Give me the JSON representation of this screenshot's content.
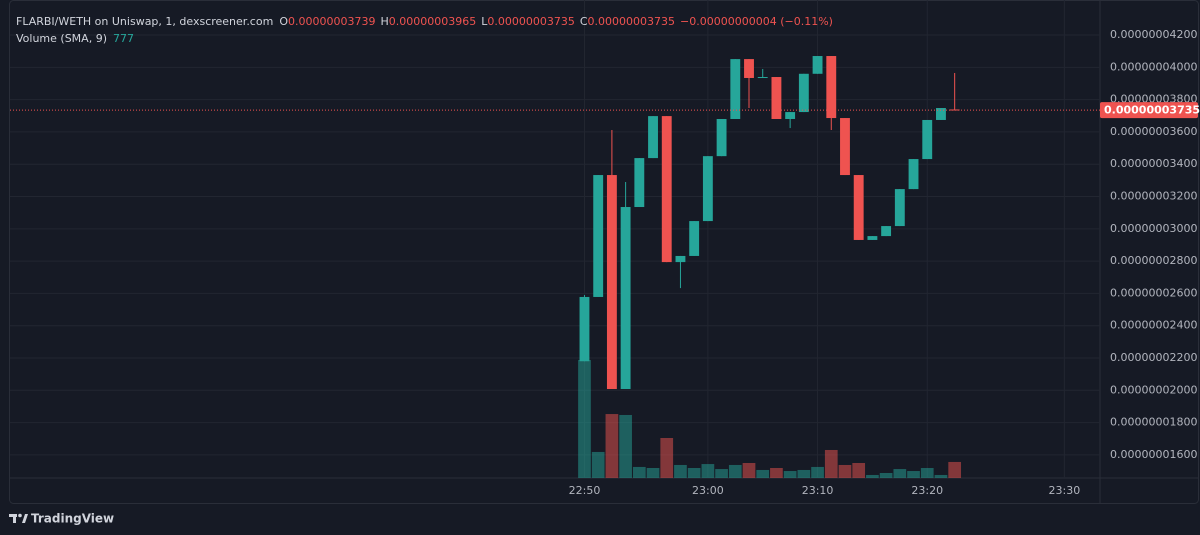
{
  "chart_data": {
    "type": "candlestick",
    "title": "FLARBI/WETH on Uniswap, 1, dexscreener.com",
    "ohlc_legend": [
      {
        "label": "O",
        "value": "0.00000003739"
      },
      {
        "label": "H",
        "value": "0.00000003965"
      },
      {
        "label": "L",
        "value": "0.00000003735"
      },
      {
        "label": "C",
        "value": "0.00000003735"
      }
    ],
    "change": "−0.00000000004 (−0.11%)",
    "volume_title": "Volume (SMA, 9)",
    "volume_sma": 777,
    "brand": "TradingView",
    "up_color": "#26a69a",
    "down_color": "#ef5350",
    "grid": true,
    "x": [
      0,
      1,
      2,
      3,
      4,
      5,
      6,
      7,
      8,
      9,
      10,
      11,
      12,
      13,
      14,
      15,
      16,
      17,
      18,
      19,
      20,
      21,
      22,
      23,
      24,
      25,
      26,
      27
    ],
    "open": [
      2.18e-08,
      2.578e-08,
      3.333e-08,
      2.008e-08,
      3.135e-08,
      3.438e-08,
      3.698e-08,
      2.794e-08,
      2.832e-08,
      3.048e-08,
      3.45e-08,
      3.68e-08,
      4.051e-08,
      3.934e-08,
      3.94e-08,
      3.68e-08,
      3.723e-08,
      3.96e-08,
      4.07e-08,
      3.686e-08,
      3.333e-08,
      2.931e-08,
      2.955e-08,
      3.017e-08,
      3.246e-08,
      3.432e-08,
      3.674e-08,
      3.739e-08
    ],
    "high": [
      2.59e-08,
      3.333e-08,
      3.612e-08,
      3.29e-08,
      3.438e-08,
      3.698e-08,
      3.698e-08,
      2.832e-08,
      3.048e-08,
      3.45e-08,
      3.68e-08,
      4.051e-08,
      4.051e-08,
      3.99e-08,
      3.94e-08,
      3.723e-08,
      3.96e-08,
      4.07e-08,
      4.07e-08,
      3.686e-08,
      3.333e-08,
      2.955e-08,
      3.017e-08,
      3.246e-08,
      3.432e-08,
      3.674e-08,
      3.748e-08,
      3.965e-08
    ],
    "low": [
      2.18e-08,
      2.578e-08,
      2.008e-08,
      2.008e-08,
      3.135e-08,
      3.438e-08,
      2.794e-08,
      2.633e-08,
      2.832e-08,
      3.048e-08,
      3.45e-08,
      3.68e-08,
      3.748e-08,
      3.934e-08,
      3.68e-08,
      3.624e-08,
      3.723e-08,
      3.96e-08,
      3.612e-08,
      3.333e-08,
      2.931e-08,
      2.931e-08,
      2.955e-08,
      3.017e-08,
      3.246e-08,
      3.432e-08,
      3.674e-08,
      3.735e-08
    ],
    "close": [
      2.578e-08,
      3.333e-08,
      2.008e-08,
      3.135e-08,
      3.438e-08,
      3.698e-08,
      2.794e-08,
      2.832e-08,
      3.048e-08,
      3.45e-08,
      3.68e-08,
      4.051e-08,
      3.934e-08,
      3.94e-08,
      3.68e-08,
      3.723e-08,
      3.96e-08,
      4.07e-08,
      3.686e-08,
      3.333e-08,
      2.931e-08,
      2.955e-08,
      3.017e-08,
      3.246e-08,
      3.432e-08,
      3.674e-08,
      3.748e-08,
      3.735e-08
    ],
    "volume": {
      "values": [
        10150,
        2240,
        5500,
        5420,
        950,
        860,
        3440,
        1120,
        860,
        1200,
        770,
        1120,
        1290,
        690,
        860,
        600,
        690,
        950,
        2410,
        1120,
        1290,
        260,
        430,
        770,
        600,
        860,
        260,
        1380
      ],
      "ylim": [
        0,
        40250
      ]
    },
    "xlim": [
      -41.9,
      37.6
    ],
    "xticks": [
      {
        "value": 0,
        "label": "22:50"
      },
      {
        "value": 9,
        "label": "23:00"
      },
      {
        "value": 17,
        "label": "23:10"
      },
      {
        "value": 25,
        "label": "23:20"
      },
      {
        "value": 35,
        "label": "23:30"
      }
    ],
    "ylim": [
      1.457e-08,
      4.355e-08
    ],
    "yticks": [
      {
        "value": 4.2e-08,
        "label": "0.00000004200"
      },
      {
        "value": 4e-08,
        "label": "0.00000004000"
      },
      {
        "value": 3.8e-08,
        "label": "0.00000003800"
      },
      {
        "value": 3.6e-08,
        "label": "0.00000003600"
      },
      {
        "value": 3.4e-08,
        "label": "0.00000003400"
      },
      {
        "value": 3.2e-08,
        "label": "0.00000003200"
      },
      {
        "value": 3e-08,
        "label": "0.00000003000"
      },
      {
        "value": 2.8e-08,
        "label": "0.00000002800"
      },
      {
        "value": 2.6e-08,
        "label": "0.00000002600"
      },
      {
        "value": 2.4e-08,
        "label": "0.00000002400"
      },
      {
        "value": 2.2e-08,
        "label": "0.00000002200"
      },
      {
        "value": 2e-08,
        "label": "0.00000002000"
      },
      {
        "value": 1.8e-08,
        "label": "0.00000001800"
      },
      {
        "value": 1.6e-08,
        "label": "0.00000001600"
      }
    ],
    "last_price": {
      "value": 3.735e-08,
      "label": "0.00000003735"
    }
  }
}
